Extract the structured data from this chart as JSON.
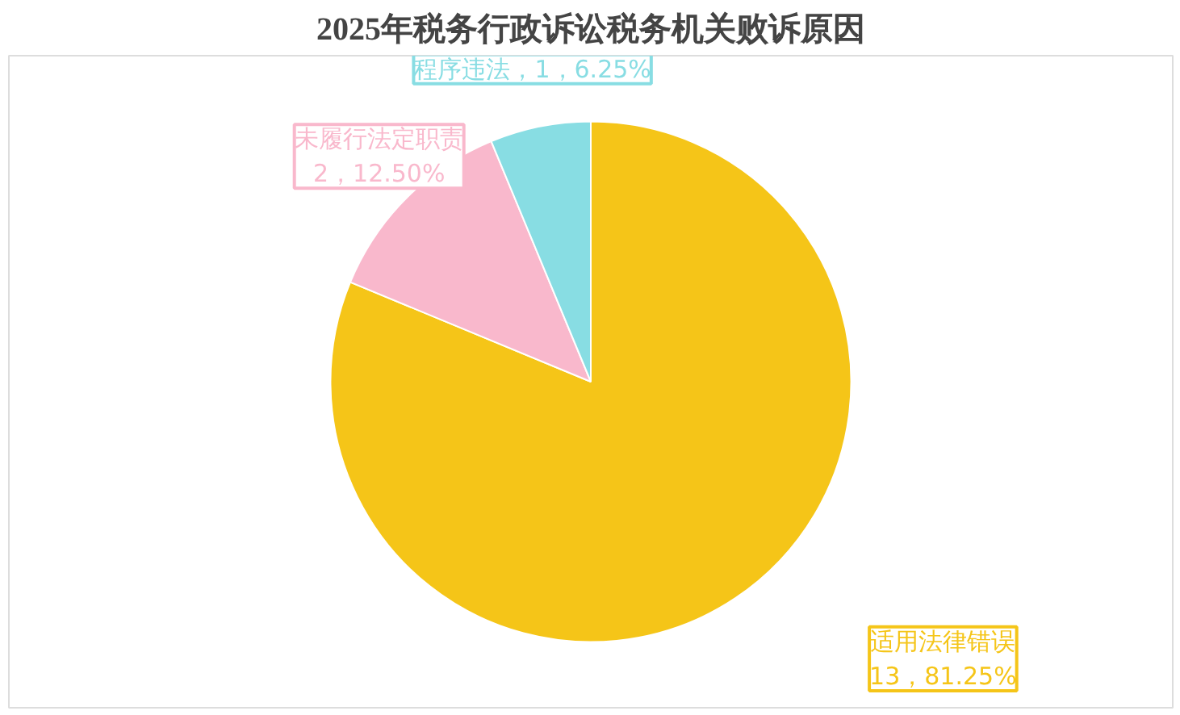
{
  "chart_data": {
    "type": "pie",
    "title": "2025年税务行政诉讼税务机关败诉原因",
    "categories": [
      "适用法律错误",
      "未履行法定职责",
      "程序违法"
    ],
    "values": [
      13,
      2,
      1
    ],
    "colors": [
      "#f5c518",
      "#f9b8cc",
      "#88dde3"
    ],
    "value_labels": [
      "13，81.25%",
      "2，12.50%",
      "1，6.25%"
    ]
  }
}
